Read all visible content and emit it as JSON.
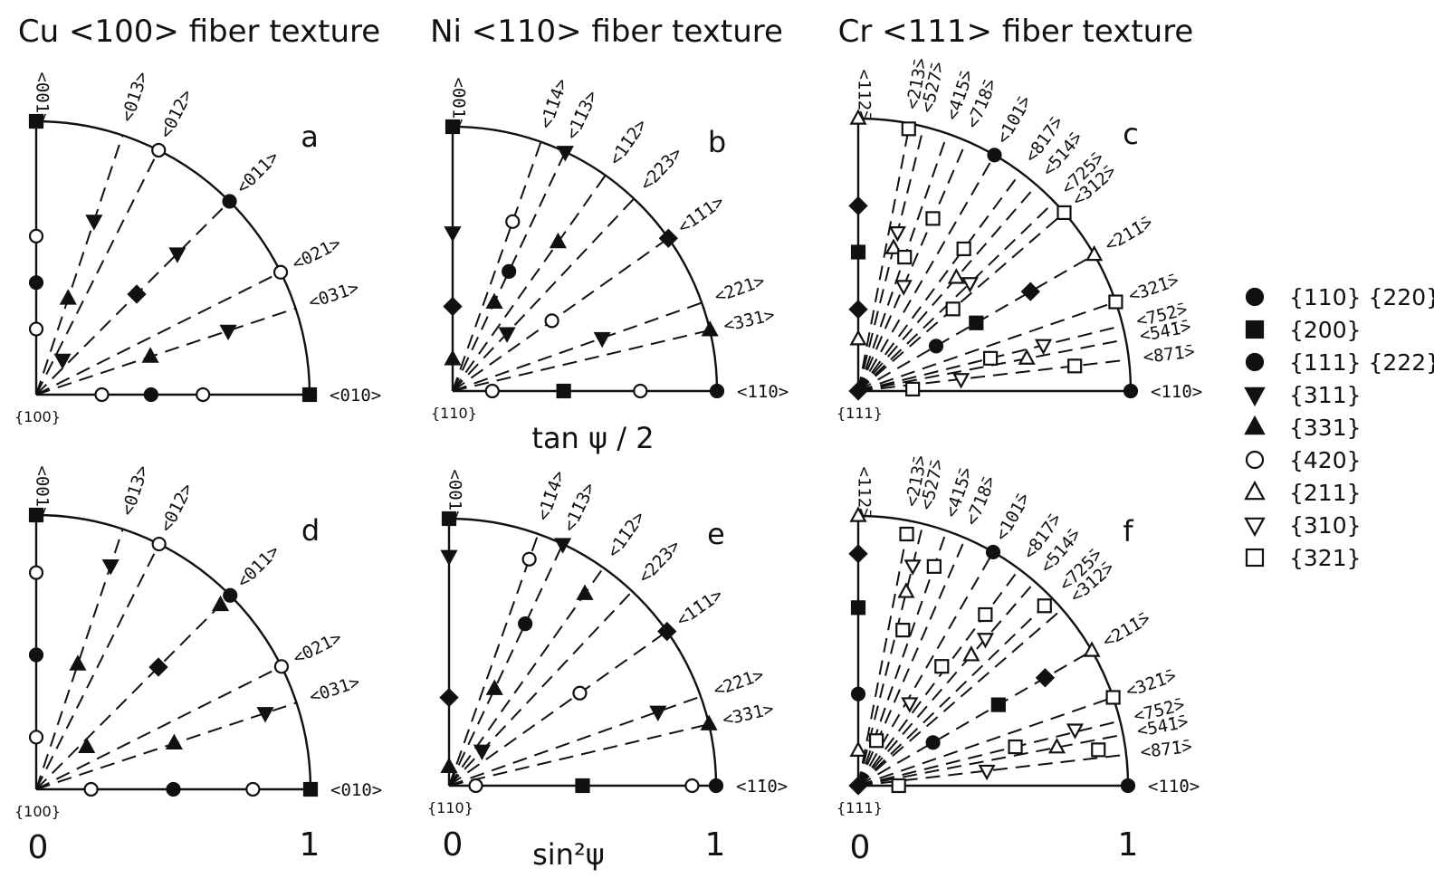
{
  "titles": [
    "Cu <100> fiber texture",
    "Ni <110> fiber texture",
    "Cr <111> fiber texture"
  ],
  "axis_labels": {
    "top_row": "tan ψ / 2",
    "bottom_row": "sin²ψ"
  },
  "ticks": {
    "zero": "0",
    "one": "1"
  },
  "legend": [
    {
      "marker": "filled-circle",
      "label": "{110} {220}"
    },
    {
      "marker": "filled-square",
      "label": "{200}"
    },
    {
      "marker": "filled-circle",
      "label": "{111} {222}"
    },
    {
      "marker": "filled-triangle-down",
      "label": "{311}"
    },
    {
      "marker": "filled-triangle-up",
      "label": "{331}"
    },
    {
      "marker": "open-circle",
      "label": "{420}"
    },
    {
      "marker": "open-triangle-up",
      "label": "{211}"
    },
    {
      "marker": "open-triangle-down",
      "label": "{310}"
    },
    {
      "marker": "open-square",
      "label": "{321}"
    }
  ],
  "panels": [
    {
      "letter": "a",
      "corner": "{100}",
      "top_dir": "<001>",
      "right_dir": "<010>",
      "rays": [
        {
          "label": "<013>",
          "angle_deg": 71.6
        },
        {
          "label": "<012>",
          "angle_deg": 63.4
        },
        {
          "label": "<011>",
          "angle_deg": 45
        },
        {
          "label": "<021>",
          "angle_deg": 26.6
        },
        {
          "label": "<031>",
          "angle_deg": 18.4
        }
      ],
      "markers": [
        {
          "type": "filled-square",
          "ray": 90,
          "r": 1.0
        },
        {
          "type": "open-circle",
          "ray": 90,
          "r": 0.58
        },
        {
          "type": "filled-circle",
          "ray": 90,
          "r": 0.41
        },
        {
          "type": "open-circle",
          "ray": 90,
          "r": 0.24
        },
        {
          "type": "filled-square",
          "ray": 0,
          "r": 1.0
        },
        {
          "type": "open-circle",
          "ray": 0,
          "r": 0.24
        },
        {
          "type": "filled-circle",
          "ray": 0,
          "r": 0.42
        },
        {
          "type": "open-circle",
          "ray": 0,
          "r": 0.61
        },
        {
          "type": "filled-triangle-down",
          "ray": 71.6,
          "r": 0.67
        },
        {
          "type": "filled-triangle-up",
          "ray": 71.6,
          "r": 0.37
        },
        {
          "type": "open-circle",
          "ray": 63.4,
          "r": 1.0
        },
        {
          "type": "filled-circle",
          "ray": 45,
          "r": 1.0
        },
        {
          "type": "filled-triangle-down",
          "ray": 45,
          "r": 0.73
        },
        {
          "type": "filled-diamond",
          "ray": 45,
          "r": 0.52
        },
        {
          "type": "filled-triangle-down",
          "ray": 53,
          "r": 0.16
        },
        {
          "type": "open-circle",
          "ray": 26.6,
          "r": 1.0
        },
        {
          "type": "filled-triangle-down",
          "ray": 18.4,
          "r": 0.74
        },
        {
          "type": "filled-triangle-up",
          "ray": 18.4,
          "r": 0.44
        }
      ]
    },
    {
      "letter": "b",
      "corner": "{110}",
      "top_dir": "<001>",
      "right_dir": "<1̄10>",
      "rays": [
        {
          "label": "<1̄14>",
          "angle_deg": 70.5
        },
        {
          "label": "<1̄13>",
          "angle_deg": 64.8
        },
        {
          "label": "<1̄12>",
          "angle_deg": 54.7
        },
        {
          "label": "<2̄23>",
          "angle_deg": 46.7
        },
        {
          "label": "<1̄11>",
          "angle_deg": 35.3
        },
        {
          "label": "<2̄21>",
          "angle_deg": 19.5
        },
        {
          "label": "<3̄31>",
          "angle_deg": 13.3
        }
      ],
      "markers": [
        {
          "type": "filled-square",
          "ray": 90,
          "r": 1.0
        },
        {
          "type": "filled-triangle-down",
          "ray": 90,
          "r": 0.6
        },
        {
          "type": "filled-diamond",
          "ray": 90,
          "r": 0.32
        },
        {
          "type": "filled-triangle-up",
          "ray": 90,
          "r": 0.12
        },
        {
          "type": "open-circle",
          "ray": 0,
          "r": 0.15
        },
        {
          "type": "filled-square",
          "ray": 0,
          "r": 0.42
        },
        {
          "type": "open-circle",
          "ray": 0,
          "r": 0.71
        },
        {
          "type": "filled-circle",
          "ray": 0,
          "r": 1.0
        },
        {
          "type": "open-circle",
          "ray": 70.5,
          "r": 0.68
        },
        {
          "type": "filled-triangle-down",
          "ray": 64.8,
          "r": 1.0
        },
        {
          "type": "filled-circle",
          "ray": 64.8,
          "r": 0.5
        },
        {
          "type": "filled-triangle-up",
          "ray": 64.8,
          "r": 0.37
        },
        {
          "type": "filled-triangle-up",
          "ray": 54.7,
          "r": 0.69
        },
        {
          "type": "filled-triangle-down",
          "ray": 46.7,
          "r": 0.3
        },
        {
          "type": "filled-diamond",
          "ray": 35.3,
          "r": 1.0
        },
        {
          "type": "open-circle",
          "ray": 35.3,
          "r": 0.46
        },
        {
          "type": "filled-triangle-down",
          "ray": 19.5,
          "r": 0.6
        },
        {
          "type": "filled-triangle-up",
          "ray": 13.3,
          "r": 1.0
        }
      ]
    },
    {
      "letter": "c",
      "corner": "{111}",
      "top_dir": "<112̄>",
      "right_dir": "<11̄0>",
      "rays": [
        {
          "label": "<213̄>",
          "angle_deg": 79.1
        },
        {
          "label": "<527̄>",
          "angle_deg": 76.1
        },
        {
          "label": "<415̄>",
          "angle_deg": 70.9
        },
        {
          "label": "<718̄>",
          "angle_deg": 66.6
        },
        {
          "label": "<101̄>",
          "angle_deg": 60
        },
        {
          "label": "<817̄>",
          "angle_deg": 53.4
        },
        {
          "label": "<514̄>",
          "angle_deg": 49.1
        },
        {
          "label": "<725̄>",
          "angle_deg": 44
        },
        {
          "label": "<312̄>",
          "angle_deg": 40.9
        },
        {
          "label": "<21̄1̄>",
          "angle_deg": 30
        },
        {
          "label": "<32̄1̄>",
          "angle_deg": 19.1
        },
        {
          "label": "<75̄2̄>",
          "angle_deg": 13.9
        },
        {
          "label": "<54̄1̄>",
          "angle_deg": 10.9
        },
        {
          "label": "<87̄1̄>",
          "angle_deg": 6.6
        }
      ],
      "markers": [
        {
          "type": "open-triangle-up",
          "ray": 90,
          "r": 1.0
        },
        {
          "type": "filled-diamond",
          "ray": 90,
          "r": 0.68
        },
        {
          "type": "filled-square",
          "ray": 90,
          "r": 0.51
        },
        {
          "type": "filled-diamond",
          "ray": 90,
          "r": 0.3
        },
        {
          "type": "open-triangle-up",
          "ray": 90,
          "r": 0.19
        },
        {
          "type": "filled-diamond",
          "ray": 0,
          "r": 0.0
        },
        {
          "type": "filled-circle",
          "ray": 0,
          "r": 1.0
        },
        {
          "type": "open-square",
          "ray": 79.1,
          "r": 0.98
        },
        {
          "type": "open-triangle-down",
          "ray": 76.1,
          "r": 0.6
        },
        {
          "type": "open-triangle-up",
          "ray": 76.1,
          "r": 0.54
        },
        {
          "type": "open-square",
          "ray": 70.9,
          "r": 0.52
        },
        {
          "type": "open-triangle-down",
          "ray": 66.6,
          "r": 0.42
        },
        {
          "type": "open-square",
          "ray": 66.6,
          "r": 0.69
        },
        {
          "type": "filled-circle",
          "ray": 60,
          "r": 1.0
        },
        {
          "type": "open-square",
          "ray": 53.4,
          "r": 0.65
        },
        {
          "type": "open-triangle-up",
          "ray": 49.1,
          "r": 0.55
        },
        {
          "type": "open-triangle-down",
          "ray": 44,
          "r": 0.57
        },
        {
          "type": "open-square",
          "ray": 40.9,
          "r": 1.0
        },
        {
          "type": "open-square",
          "ray": 40.9,
          "r": 0.46
        },
        {
          "type": "open-triangle-up",
          "ray": 30,
          "r": 1.0
        },
        {
          "type": "filled-diamond",
          "ray": 30,
          "r": 0.73
        },
        {
          "type": "filled-square",
          "ray": 30,
          "r": 0.5
        },
        {
          "type": "filled-circle",
          "ray": 30,
          "r": 0.33
        },
        {
          "type": "open-square",
          "ray": 19.1,
          "r": 1.0
        },
        {
          "type": "open-triangle-down",
          "ray": 13.9,
          "r": 0.7
        },
        {
          "type": "open-square",
          "ray": 13.9,
          "r": 0.5
        },
        {
          "type": "open-triangle-up",
          "ray": 10.9,
          "r": 0.63
        },
        {
          "type": "open-square",
          "ray": 6.6,
          "r": 0.8
        },
        {
          "type": "open-triangle-down",
          "ray": 6.6,
          "r": 0.38
        },
        {
          "type": "open-square",
          "ray": 2,
          "r": 0.2
        }
      ]
    },
    {
      "letter": "d",
      "corner": "{100}",
      "top_dir": "<001>",
      "right_dir": "<010>",
      "rays": [
        {
          "label": "<013>",
          "angle_deg": 71.6
        },
        {
          "label": "<012>",
          "angle_deg": 63.4
        },
        {
          "label": "<011>",
          "angle_deg": 45
        },
        {
          "label": "<021>",
          "angle_deg": 26.6
        },
        {
          "label": "<031>",
          "angle_deg": 18.4
        }
      ],
      "markers": [
        {
          "type": "filled-square",
          "ray": 90,
          "r": 1.0
        },
        {
          "type": "open-circle",
          "ray": 90,
          "r": 0.79
        },
        {
          "type": "filled-circle",
          "ray": 90,
          "r": 0.49
        },
        {
          "type": "open-circle",
          "ray": 90,
          "r": 0.19
        },
        {
          "type": "filled-square",
          "ray": 0,
          "r": 1.0
        },
        {
          "type": "open-circle",
          "ray": 0,
          "r": 0.2
        },
        {
          "type": "filled-circle",
          "ray": 0,
          "r": 0.5
        },
        {
          "type": "open-circle",
          "ray": 0,
          "r": 0.79
        },
        {
          "type": "filled-triangle-down",
          "ray": 71.6,
          "r": 0.86
        },
        {
          "type": "filled-triangle-up",
          "ray": 71.6,
          "r": 0.48
        },
        {
          "type": "open-circle",
          "ray": 63.4,
          "r": 1.0
        },
        {
          "type": "filled-circle",
          "ray": 45,
          "r": 1.0
        },
        {
          "type": "filled-triangle-up",
          "ray": 45,
          "r": 0.95
        },
        {
          "type": "filled-diamond",
          "ray": 45,
          "r": 0.63
        },
        {
          "type": "filled-triangle-up",
          "ray": 40,
          "r": 0.24
        },
        {
          "type": "open-circle",
          "ray": 26.6,
          "r": 1.0
        },
        {
          "type": "filled-triangle-down",
          "ray": 18.4,
          "r": 0.88
        },
        {
          "type": "filled-triangle-up",
          "ray": 18.4,
          "r": 0.53
        }
      ]
    },
    {
      "letter": "e",
      "corner": "{110}",
      "top_dir": "<001>",
      "right_dir": "<1̄10>",
      "rays": [
        {
          "label": "<1̄14>",
          "angle_deg": 70.5
        },
        {
          "label": "<1̄13>",
          "angle_deg": 64.8
        },
        {
          "label": "<1̄12>",
          "angle_deg": 54.7
        },
        {
          "label": "<2̄23>",
          "angle_deg": 46.7
        },
        {
          "label": "<1̄11>",
          "angle_deg": 35.3
        },
        {
          "label": "<2̄21>",
          "angle_deg": 19.5
        },
        {
          "label": "<3̄31>",
          "angle_deg": 13.3
        }
      ],
      "markers": [
        {
          "type": "filled-square",
          "ray": 90,
          "r": 1.0
        },
        {
          "type": "filled-triangle-down",
          "ray": 90,
          "r": 0.86
        },
        {
          "type": "filled-diamond",
          "ray": 90,
          "r": 0.33
        },
        {
          "type": "filled-triangle-up",
          "ray": 90,
          "r": 0.07
        },
        {
          "type": "open-circle",
          "ray": 0,
          "r": 0.1
        },
        {
          "type": "filled-square",
          "ray": 0,
          "r": 0.5
        },
        {
          "type": "open-circle",
          "ray": 0,
          "r": 0.91
        },
        {
          "type": "filled-circle",
          "ray": 0,
          "r": 1.0
        },
        {
          "type": "open-circle",
          "ray": 70.5,
          "r": 0.9
        },
        {
          "type": "filled-triangle-down",
          "ray": 64.8,
          "r": 1.0
        },
        {
          "type": "filled-circle",
          "ray": 64.8,
          "r": 0.67
        },
        {
          "type": "filled-triangle-up",
          "ray": 64.8,
          "r": 0.4
        },
        {
          "type": "filled-triangle-up",
          "ray": 54.7,
          "r": 0.88
        },
        {
          "type": "filled-triangle-down",
          "ray": 46.7,
          "r": 0.18
        },
        {
          "type": "filled-diamond",
          "ray": 35.3,
          "r": 1.0
        },
        {
          "type": "open-circle",
          "ray": 35.3,
          "r": 0.6
        },
        {
          "type": "filled-triangle-down",
          "ray": 19.5,
          "r": 0.83
        },
        {
          "type": "filled-triangle-up",
          "ray": 13.3,
          "r": 1.0
        }
      ]
    },
    {
      "letter": "f",
      "corner": "{111}",
      "top_dir": "<112̄>",
      "right_dir": "<11̄0>",
      "rays": [
        {
          "label": "<213̄>",
          "angle_deg": 79.1
        },
        {
          "label": "<527̄>",
          "angle_deg": 76.1
        },
        {
          "label": "<415̄>",
          "angle_deg": 70.9
        },
        {
          "label": "<718̄>",
          "angle_deg": 66.6
        },
        {
          "label": "<101̄>",
          "angle_deg": 60
        },
        {
          "label": "<817̄>",
          "angle_deg": 53.4
        },
        {
          "label": "<514̄>",
          "angle_deg": 49.1
        },
        {
          "label": "<725̄>",
          "angle_deg": 44
        },
        {
          "label": "<312̄>",
          "angle_deg": 40.9
        },
        {
          "label": "<21̄1̄>",
          "angle_deg": 30
        },
        {
          "label": "<32̄1̄>",
          "angle_deg": 19.1
        },
        {
          "label": "<75̄2̄>",
          "angle_deg": 13.9
        },
        {
          "label": "<54̄1̄>",
          "angle_deg": 10.9
        },
        {
          "label": "<87̄1̄>",
          "angle_deg": 6.6
        }
      ],
      "markers": [
        {
          "type": "open-triangle-up",
          "ray": 90,
          "r": 1.0
        },
        {
          "type": "filled-diamond",
          "ray": 90,
          "r": 0.86
        },
        {
          "type": "filled-square",
          "ray": 90,
          "r": 0.66
        },
        {
          "type": "filled-circle",
          "ray": 90,
          "r": 0.34
        },
        {
          "type": "open-triangle-up",
          "ray": 90,
          "r": 0.13
        },
        {
          "type": "filled-diamond",
          "ray": 0,
          "r": 0.0
        },
        {
          "type": "filled-circle",
          "ray": 0,
          "r": 1.0
        },
        {
          "type": "open-square",
          "ray": 0,
          "r": 0.15
        },
        {
          "type": "open-square",
          "ray": 79.1,
          "r": 0.95
        },
        {
          "type": "open-triangle-down",
          "ray": 76.1,
          "r": 0.84
        },
        {
          "type": "open-triangle-up",
          "ray": 76.1,
          "r": 0.74
        },
        {
          "type": "open-square",
          "ray": 70.9,
          "r": 0.86
        },
        {
          "type": "open-square",
          "ray": 74,
          "r": 0.6
        },
        {
          "type": "filled-circle",
          "ray": 60,
          "r": 1.0
        },
        {
          "type": "open-square",
          "ray": 53.4,
          "r": 0.79
        },
        {
          "type": "open-triangle-down",
          "ray": 49.1,
          "r": 0.72
        },
        {
          "type": "open-triangle-up",
          "ray": 49.1,
          "r": 0.64
        },
        {
          "type": "open-square",
          "ray": 44,
          "r": 0.96
        },
        {
          "type": "open-square",
          "ray": 55,
          "r": 0.54
        },
        {
          "type": "open-triangle-down",
          "ray": 58,
          "r": 0.36
        },
        {
          "type": "open-triangle-up",
          "ray": 30,
          "r": 1.0
        },
        {
          "type": "filled-diamond",
          "ray": 30,
          "r": 0.8
        },
        {
          "type": "filled-square",
          "ray": 30,
          "r": 0.6
        },
        {
          "type": "filled-circle",
          "ray": 30,
          "r": 0.32
        },
        {
          "type": "open-square",
          "ray": 19.1,
          "r": 1.0
        },
        {
          "type": "open-triangle-down",
          "ray": 14.5,
          "r": 0.83
        },
        {
          "type": "open-square",
          "ray": 13.9,
          "r": 0.6
        },
        {
          "type": "open-triangle-up",
          "ray": 10.9,
          "r": 0.75
        },
        {
          "type": "open-square",
          "ray": 8.5,
          "r": 0.9
        },
        {
          "type": "open-triangle-down",
          "ray": 6.6,
          "r": 0.48
        },
        {
          "type": "open-square",
          "ray": 68,
          "r": 0.18
        }
      ]
    }
  ]
}
